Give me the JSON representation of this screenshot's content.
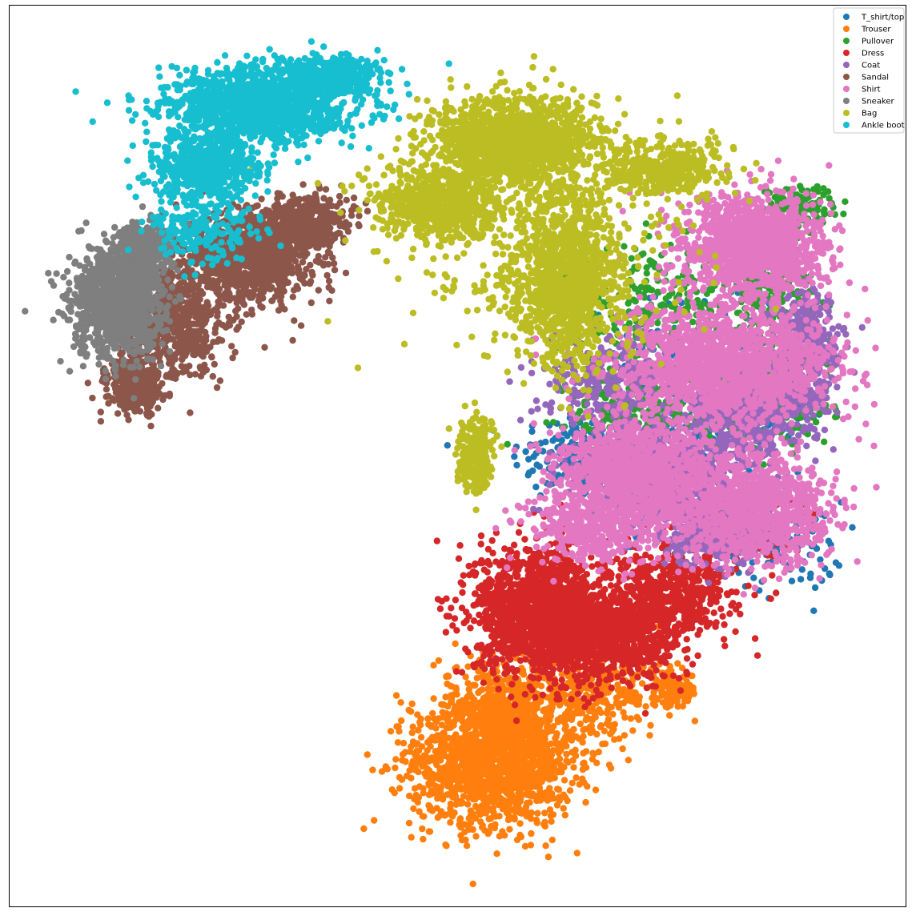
{
  "chart_data": {
    "type": "scatter",
    "title": "",
    "xlabel": "",
    "ylabel": "",
    "xticks": [],
    "yticks": [],
    "xlim": [
      0,
      100
    ],
    "ylim": [
      0,
      100
    ],
    "grid": false,
    "legend_position": "top-right",
    "series": [
      {
        "name": "T_shirt/top",
        "color": "#1f77b4",
        "clusters": [
          [
            63,
            50,
            7,
            5,
            140
          ],
          [
            82,
            55,
            7,
            4,
            160
          ],
          [
            87,
            40,
            6,
            5,
            90
          ],
          [
            74,
            55,
            10,
            12,
            220
          ]
        ]
      },
      {
        "name": "Trouser",
        "color": "#ff7f0e",
        "clusters": [
          [
            54,
            16,
            9,
            7,
            1500
          ],
          [
            56,
            22,
            8,
            6,
            500
          ],
          [
            66,
            24,
            7,
            5,
            260
          ],
          [
            74,
            24,
            3,
            2,
            120
          ]
        ]
      },
      {
        "name": "Pullover",
        "color": "#2ca02c",
        "clusters": [
          [
            72,
            66,
            8,
            7,
            220
          ],
          [
            85,
            68,
            5,
            5,
            180
          ],
          [
            88,
            78,
            4,
            2,
            120
          ],
          [
            70,
            55,
            8,
            5,
            200
          ],
          [
            84,
            56,
            8,
            6,
            200
          ]
        ]
      },
      {
        "name": "Dress",
        "color": "#d62728",
        "clusters": [
          [
            59,
            33,
            7,
            7,
            1500
          ],
          [
            67,
            30,
            8,
            5,
            900
          ],
          [
            74,
            35,
            7,
            5,
            500
          ],
          [
            82,
            42,
            5,
            3,
            200
          ]
        ]
      },
      {
        "name": "Coat",
        "color": "#9467bd",
        "clusters": [
          [
            73,
            48,
            9,
            5,
            700
          ],
          [
            83,
            55,
            7,
            5,
            500
          ],
          [
            89,
            62,
            4,
            6,
            350
          ],
          [
            79,
            42,
            6,
            4,
            400
          ],
          [
            67,
            58,
            8,
            6,
            300
          ]
        ]
      },
      {
        "name": "Sandal",
        "color": "#8c564b",
        "clusters": [
          [
            27,
            72,
            7,
            5,
            1000
          ],
          [
            19,
            65,
            5,
            6,
            500
          ],
          [
            14,
            58,
            3,
            3,
            400
          ],
          [
            33,
            76,
            5,
            3,
            400
          ]
        ]
      },
      {
        "name": "Shirt",
        "color": "#e377c2",
        "clusters": [
          [
            83,
            73,
            8,
            6,
            1300
          ],
          [
            80,
            60,
            12,
            6,
            1500
          ],
          [
            70,
            48,
            9,
            6,
            1200
          ],
          [
            83,
            44,
            8,
            6,
            1100
          ],
          [
            65,
            42,
            7,
            4,
            400
          ]
        ]
      },
      {
        "name": "Sneaker",
        "color": "#7f7f7f",
        "clusters": [
          [
            12,
            67,
            5,
            6,
            1200
          ],
          [
            15,
            73,
            3,
            3,
            300
          ]
        ]
      },
      {
        "name": "Bag",
        "color": "#bcbd22",
        "clusters": [
          [
            56,
            85,
            9,
            5,
            1300
          ],
          [
            62,
            70,
            6,
            10,
            1200
          ],
          [
            48,
            78,
            7,
            4,
            700
          ],
          [
            73,
            82,
            7,
            3,
            400
          ],
          [
            52,
            50,
            2,
            4,
            300
          ],
          [
            60,
            72,
            18,
            12,
            250
          ]
        ]
      },
      {
        "name": "Ankle boot",
        "color": "#17becf",
        "clusters": [
          [
            28,
            89,
            10,
            4,
            1300
          ],
          [
            22,
            82,
            6,
            4,
            600
          ],
          [
            36,
            92,
            6,
            2,
            400
          ],
          [
            22,
            75,
            6,
            4,
            200
          ]
        ]
      }
    ]
  }
}
